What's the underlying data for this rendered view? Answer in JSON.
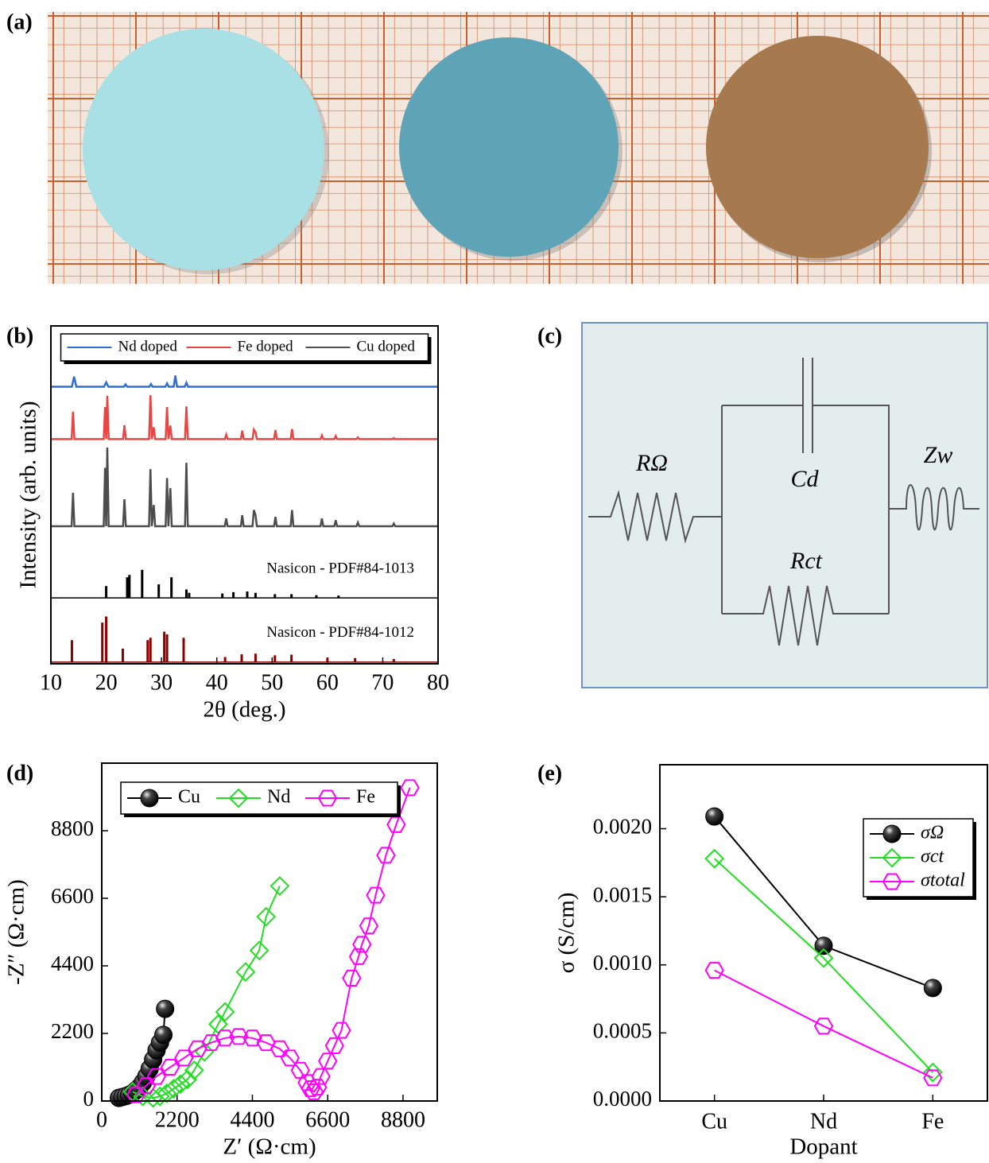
{
  "panel_labels": [
    "(a)",
    "(b)",
    "(c)",
    "(d)",
    "(e)"
  ],
  "circuit": {
    "labels": {
      "r_ohm": "RΩ",
      "cd": "Cd",
      "zw": "Zw",
      "rct": "Rct"
    }
  },
  "chart_data": [
    {
      "type": "line",
      "xlabel": "2θ (deg.)",
      "ylabel": "Intensity (arb. units)",
      "xlim": [
        10,
        80
      ],
      "xticks": [
        10,
        20,
        30,
        40,
        50,
        60,
        70,
        80
      ],
      "ylim": [
        0,
        100
      ],
      "legend": "upper center",
      "legend_ncol": 3,
      "series": [
        {
          "name": "Nd doped",
          "color": "#2f6fcf",
          "x": [
            10,
            13.8,
            14.2,
            14.6,
            19.6,
            20,
            20.4,
            23.2,
            23.5,
            23.8,
            27.8,
            28.1,
            28.4,
            30.7,
            31,
            31.3,
            32.2,
            32.5,
            32.8,
            34.2,
            34.5,
            34.8,
            80
          ],
          "values": [
            82,
            82,
            85,
            82,
            82,
            83.3,
            82,
            82,
            82.7,
            82,
            82,
            82.8,
            82,
            82,
            83,
            82,
            82,
            85.3,
            82,
            82,
            83.2,
            82,
            82
          ]
        },
        {
          "name": "Fe doped",
          "color": "#e84545",
          "x": [
            10,
            13.75,
            14,
            14.25,
            19.55,
            19.8,
            20,
            20.2,
            20.45,
            23.05,
            23.3,
            23.55,
            27.75,
            28,
            28.25,
            28.6,
            28.85,
            30.75,
            31,
            31.25,
            31.6,
            31.85,
            34.25,
            34.5,
            34.75,
            41.45,
            41.7,
            41.95,
            44.35,
            44.6,
            44.85,
            46.45,
            46.7,
            47,
            47.25,
            50.35,
            50.6,
            50.85,
            53.35,
            53.6,
            53.85,
            58.75,
            59,
            59.25,
            61.25,
            61.5,
            61.75,
            65.25,
            65.5,
            65.75,
            71.75,
            72,
            72.25,
            80
          ],
          "values": [
            66.5,
            66.5,
            74.6,
            66.5,
            66.5,
            76,
            66.5,
            79.3,
            66.5,
            66.5,
            70.6,
            66.5,
            66.5,
            79.5,
            66.5,
            70,
            66.5,
            66.5,
            76,
            66.5,
            70.5,
            66.5,
            66.5,
            76.2,
            66.5,
            66.5,
            67.8,
            66.5,
            66.5,
            69,
            66.5,
            66.5,
            69.3,
            68.5,
            66.5,
            66.5,
            69.2,
            66.5,
            66.5,
            69.5,
            66.5,
            66.5,
            67.6,
            66.5,
            66.5,
            67.4,
            66.5,
            66.5,
            67,
            66.5,
            66.5,
            66.8,
            66.5,
            66.5
          ]
        },
        {
          "name": "Cu doped",
          "color": "#4d4d4d",
          "x": [
            10,
            13.75,
            14,
            14.25,
            19.55,
            19.8,
            20,
            20.2,
            20.45,
            23.05,
            23.3,
            23.55,
            27.75,
            28,
            28.25,
            28.6,
            28.85,
            30.75,
            31,
            31.25,
            31.6,
            31.85,
            34.25,
            34.5,
            34.75,
            41.45,
            41.7,
            41.95,
            44.35,
            44.6,
            44.85,
            46.45,
            46.7,
            47,
            47.25,
            50.35,
            50.6,
            50.85,
            53.35,
            53.6,
            53.85,
            58.75,
            59,
            59.25,
            61.25,
            61.5,
            61.75,
            65.25,
            65.5,
            65.75,
            71.75,
            72,
            72.25,
            80
          ],
          "values": [
            40.7,
            40.7,
            50.6,
            40.7,
            40.7,
            58,
            40.7,
            64,
            40.7,
            40.7,
            48.7,
            40.7,
            40.7,
            57.6,
            40.7,
            47,
            40.7,
            40.7,
            55,
            40.7,
            52,
            40.7,
            40.7,
            59.5,
            40.7,
            40.7,
            43,
            40.7,
            40.7,
            44,
            40.7,
            40.7,
            45.5,
            44,
            40.7,
            40.7,
            43.5,
            40.7,
            40.7,
            45.5,
            40.7,
            40.7,
            43,
            40.7,
            40.7,
            42.5,
            40.7,
            40.7,
            41.8,
            40.7,
            40.7,
            41.5,
            40.7,
            40.7
          ]
        },
        {
          "style": "stick",
          "color": "#000000",
          "base": 19.5,
          "annotation": "Nasicon - PDF#84-1013",
          "x": [
            20,
            23.8,
            24.2,
            26.5,
            29.5,
            31.8,
            34.5,
            35,
            41,
            43,
            45.5,
            47,
            50.5,
            53.5,
            58,
            62
          ],
          "values": [
            23,
            25.6,
            26.3,
            27.8,
            23.5,
            25.6,
            22,
            21,
            20.8,
            21.2,
            21.4,
            21,
            20.6,
            20.6,
            20.3,
            20.2
          ]
        },
        {
          "style": "stick",
          "color": "#8b0000",
          "base": 0.5,
          "annotation": "Nasicon - PDF#84-1012",
          "x": [
            13.8,
            19.3,
            20,
            23,
            27.5,
            28,
            30.5,
            31,
            34,
            41.5,
            44.5,
            47,
            50.5,
            53.5,
            60,
            65,
            72
          ],
          "values": [
            7,
            12.2,
            14,
            4.5,
            7,
            7.7,
            9.5,
            8.7,
            7.7,
            2,
            2.8,
            3,
            2.5,
            2.7,
            1.8,
            1.7,
            1.4
          ]
        }
      ]
    },
    {
      "type": "line",
      "xlabel": "Z′ (Ω·cm)",
      "ylabel": "-Z″ (Ω·cm)",
      "xlim": [
        0,
        9800
      ],
      "xticks": [
        0,
        2200,
        4400,
        6600,
        8800
      ],
      "ylim": [
        0,
        11000
      ],
      "yticks": [
        0,
        2200,
        4400,
        6600,
        8800
      ],
      "legend": "upper left",
      "legend_ncol": 3,
      "series": [
        {
          "name": "Cu",
          "color": "#000000",
          "marker": "sphere",
          "x": [
            500,
            600,
            700,
            800,
            900,
            1000,
            1100,
            1200,
            1300,
            1400,
            1500,
            1600,
            1700,
            1800,
            1850
          ],
          "values": [
            100,
            130,
            160,
            200,
            260,
            350,
            450,
            600,
            800,
            1050,
            1350,
            1650,
            1900,
            2150,
            3000
          ]
        },
        {
          "name": "Nd",
          "color": "#22dd22",
          "marker": "diamond",
          "x": [
            900,
            1200,
            1500,
            1700,
            1900,
            2100,
            2300,
            2500,
            2700,
            3000,
            3400,
            3600,
            4200,
            4600,
            4800,
            5200
          ],
          "values": [
            300,
            150,
            100,
            150,
            250,
            400,
            550,
            700,
            1000,
            1600,
            2500,
            2900,
            4200,
            4900,
            6000,
            7000
          ]
        },
        {
          "name": "Fe",
          "color": "#ff00ff",
          "marker": "hexagon",
          "x": [
            1000,
            1300,
            1600,
            2000,
            2400,
            2800,
            3200,
            3600,
            4000,
            4400,
            4800,
            5200,
            5500,
            5800,
            6000,
            6100,
            6200,
            6300,
            6400,
            6600,
            6800,
            7000,
            7300,
            7500,
            7600,
            7800,
            8000,
            8300,
            8600,
            9000
          ],
          "values": [
            200,
            500,
            800,
            1100,
            1400,
            1700,
            1900,
            2050,
            2100,
            2050,
            1900,
            1700,
            1400,
            1000,
            600,
            400,
            300,
            450,
            800,
            1300,
            1800,
            2300,
            4000,
            4700,
            5100,
            5700,
            6700,
            8000,
            9000,
            10200
          ]
        }
      ]
    },
    {
      "type": "line",
      "xlabel": "Dopant",
      "ylabel": "σ (S/cm)",
      "categories": [
        "Cu",
        "Nd",
        "Fe"
      ],
      "ylim": [
        0,
        0.00247
      ],
      "yticks": [
        {
          "value": 0,
          "label": "0.0000"
        },
        {
          "value": 0.0005,
          "label": "0.0005"
        },
        {
          "value": 0.001,
          "label": "0.0010"
        },
        {
          "value": 0.0015,
          "label": "0.0015"
        },
        {
          "value": 0.002,
          "label": "0.0020"
        }
      ],
      "legend": "upper right",
      "legend_ncol": 1,
      "series": [
        {
          "name": "σΩ",
          "color": "#000000",
          "marker": "sphere",
          "values": [
            0.00209,
            0.00114,
            0.00083
          ]
        },
        {
          "name": "σct",
          "color": "#22dd22",
          "marker": "diamond",
          "values": [
            0.00178,
            0.00105,
            0.00021
          ]
        },
        {
          "name": "σtotal",
          "color": "#ff00ff",
          "marker": "hexagon",
          "values": [
            0.00096,
            0.00055,
            0.00017
          ]
        }
      ]
    }
  ]
}
